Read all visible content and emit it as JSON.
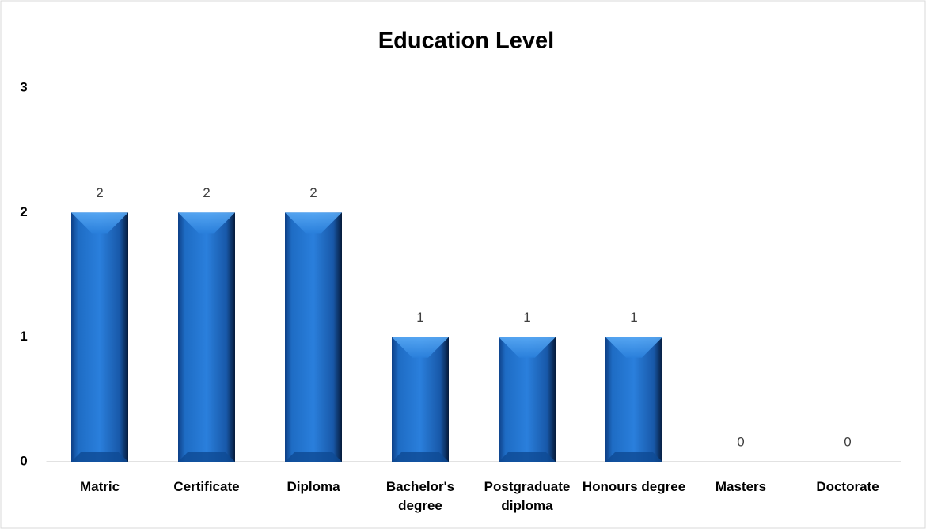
{
  "chart_data": {
    "type": "bar",
    "title": "Education Level",
    "categories": [
      "Matric",
      "Certificate",
      "Diploma",
      "Bachelor's degree",
      "Postgraduate diploma",
      "Honours degree",
      "Masters",
      "Doctorate"
    ],
    "values": [
      2,
      2,
      2,
      1,
      1,
      1,
      0,
      0
    ],
    "color": "#1f6fc6",
    "ylim": [
      0,
      3
    ],
    "yticks": [
      0,
      1,
      2,
      3
    ],
    "grid": false
  }
}
